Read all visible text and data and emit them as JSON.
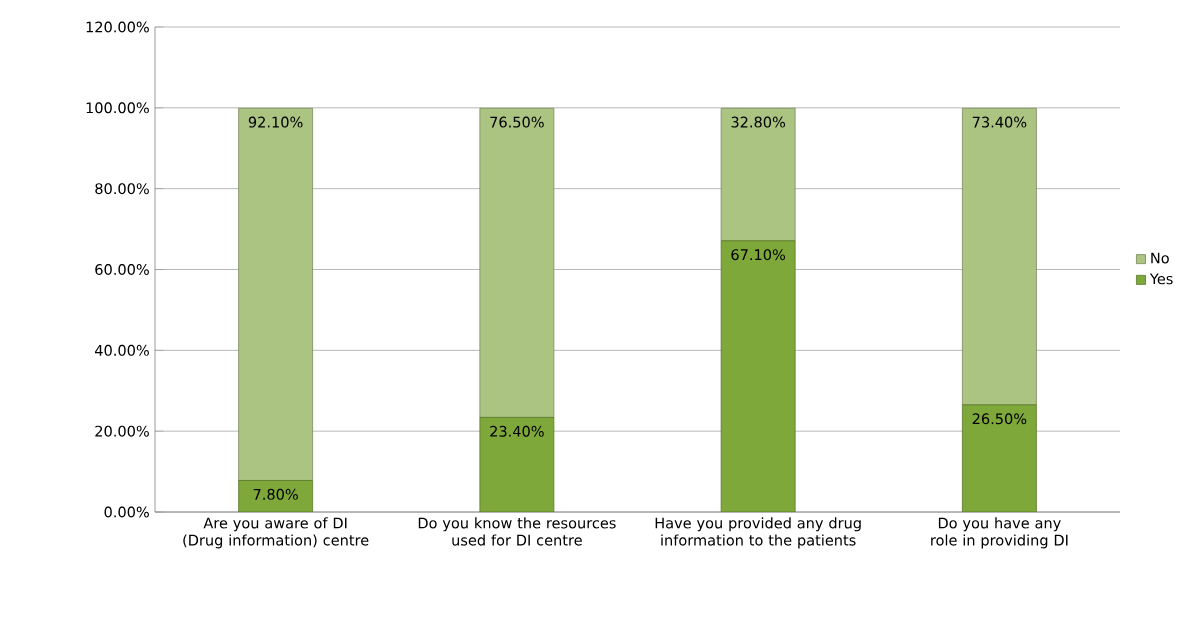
{
  "chart_data": {
    "type": "bar",
    "stacked": true,
    "categories": [
      "Are you aware of DI (Drug information) centre",
      "Do you know the resources used for DI centre",
      "Have you provided any drug information to the patients",
      "Do you have any role in providing DI"
    ],
    "series": [
      {
        "name": "Yes",
        "color": "#7fa83a",
        "values": [
          7.8,
          23.4,
          67.1,
          26.5
        ],
        "value_labels": [
          "7.80%",
          "23.40%",
          "67.10%",
          "26.50%"
        ]
      },
      {
        "name": "No",
        "color": "#abc482",
        "values": [
          92.1,
          76.5,
          32.8,
          73.4
        ],
        "value_labels": [
          "92.10%",
          "76.50%",
          "32.80%",
          "73.40%"
        ]
      }
    ],
    "ylim": [
      0,
      120
    ],
    "yticks": [
      {
        "value": 0,
        "label": "0.00%"
      },
      {
        "value": 20,
        "label": "20.00%"
      },
      {
        "value": 40,
        "label": "40.00%"
      },
      {
        "value": 60,
        "label": "60.00%"
      },
      {
        "value": 80,
        "label": "80.00%"
      },
      {
        "value": 100,
        "label": "100.00%"
      },
      {
        "value": 120,
        "label": "120.00%"
      }
    ],
    "grid": "y",
    "legend": "right"
  }
}
